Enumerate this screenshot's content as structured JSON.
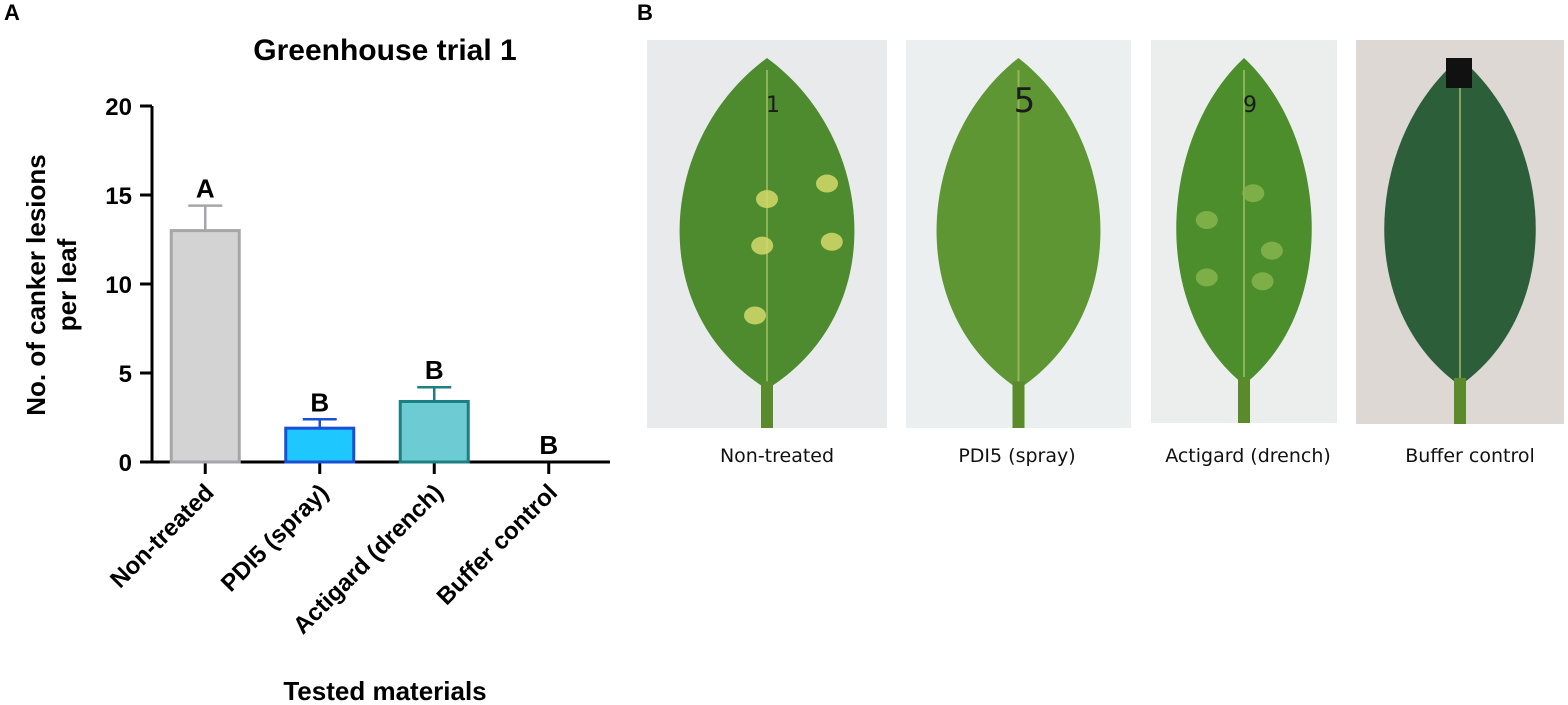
{
  "panel_a_label": "A",
  "panel_b_label": "B",
  "chart_data": {
    "type": "bar",
    "title": "Greenhouse trial 1",
    "xlabel": "Tested materials",
    "ylabel_lines": [
      "No. of canker lesions",
      "per leaf"
    ],
    "categories": [
      "Non-treated",
      "PDI5 (spray)",
      "Actigard (drench)",
      "Buffer control"
    ],
    "values": [
      13.0,
      1.9,
      3.4,
      0
    ],
    "errors": [
      1.4,
      0.5,
      0.8,
      0
    ],
    "significance_letters": [
      "A",
      "B",
      "B",
      "B"
    ],
    "ylim": [
      0,
      20
    ],
    "yticks": [
      0,
      5,
      10,
      15,
      20
    ],
    "bar_fill_colors": [
      "#d3d3d3",
      "#1ec8ff",
      "#6ccbd3",
      "#ffffff"
    ],
    "bar_edge_colors": [
      "#a6a6aa",
      "#1a4fd6",
      "#1c7f82",
      "#000000"
    ],
    "grid": false,
    "legend": "none"
  },
  "photos": [
    {
      "caption": "Non-treated",
      "bg": "#e9eaec",
      "leaf": "#4e8a2e",
      "marking": "1"
    },
    {
      "caption": "PDI5 (spray)",
      "bg": "#eceff0",
      "leaf": "#5d9632",
      "marking": "5"
    },
    {
      "caption": "Actigard (drench)",
      "bg": "#eceeee",
      "leaf": "#4c8d2c",
      "marking": "9"
    },
    {
      "caption": "Buffer control",
      "bg": "#ddd8d4",
      "leaf": "#2d5e3a",
      "marking": ""
    }
  ]
}
